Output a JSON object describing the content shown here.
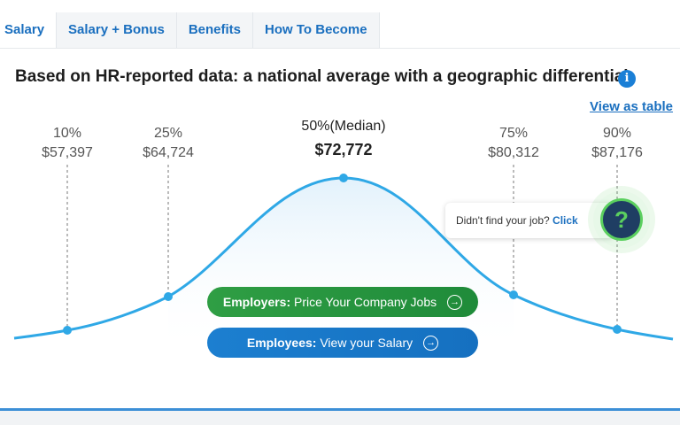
{
  "tabs": [
    "Salary",
    "Salary + Bonus",
    "Benefits",
    "How To Become"
  ],
  "heading": "Based on HR-reported data: a national average with a geographic differential",
  "view_table": "View as table",
  "percentiles": [
    {
      "pct": "10%",
      "amount": "$57,397"
    },
    {
      "pct": "25%",
      "amount": "$64,724"
    },
    {
      "pct": "50%(Median)",
      "amount": "$72,772"
    },
    {
      "pct": "75%",
      "amount": "$80,312"
    },
    {
      "pct": "90%",
      "amount": "$87,176"
    }
  ],
  "buttons": {
    "employers_bold": "Employers:",
    "employers_rest": " Price Your Company Jobs",
    "employees_bold": "Employees:",
    "employees_rest": " View your Salary"
  },
  "callout": {
    "text": "Didn't find your job?",
    "click": "Click"
  },
  "help_icon": "?",
  "colors": {
    "curve": "#2fa8e6",
    "employers_button": "#2a9a40",
    "employees_button": "#1a78c8",
    "link": "#1a6fbf"
  }
}
